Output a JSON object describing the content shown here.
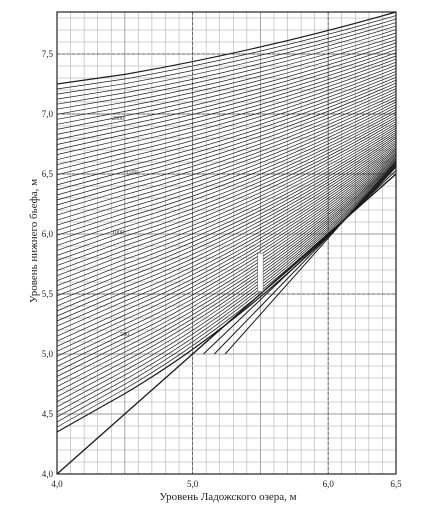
{
  "chart_data": {
    "type": "line",
    "xlabel": "Уровень Ладожского озера, м",
    "ylabel": "Уровень нижнего бьефа, м",
    "xlim": [
      4.0,
      6.5
    ],
    "ylim": [
      4.0,
      7.85
    ],
    "x_ticks": [
      {
        "value": 4.0,
        "label": "4,0"
      },
      {
        "value": 5.0,
        "label": "5,0"
      },
      {
        "value": 6.0,
        "label": "6,0"
      },
      {
        "value": 6.5,
        "label": "6,5"
      }
    ],
    "y_ticks": [
      {
        "value": 4.0,
        "label": "4,0"
      },
      {
        "value": 4.5,
        "label": "4,5"
      },
      {
        "value": 5.0,
        "label": "5,0"
      },
      {
        "value": 5.5,
        "label": "5,5"
      },
      {
        "value": 6.0,
        "label": "6,0"
      },
      {
        "value": 6.5,
        "label": "6,5"
      },
      {
        "value": 7.0,
        "label": "7,0"
      },
      {
        "value": 7.5,
        "label": "7,5"
      }
    ],
    "grid": true,
    "minor_grid_step_x": 0.1,
    "minor_grid_step_y": 0.1,
    "curve_family": {
      "count": 70,
      "x_break": 4.5,
      "bottom_curve": {
        "y_at_xmin": 4.35,
        "y_at_break": 4.67,
        "y_at_xmax": 6.56
      },
      "top_curve": {
        "y_at_xmin": 7.25,
        "y_at_break": 7.33,
        "y_at_xmax": 7.85
      },
      "converge_top_y_at_xmax": 6.7
    },
    "reference_lines": [
      {
        "x": [
          4.0,
          6.5
        ],
        "y": [
          4.0,
          6.5
        ]
      }
    ],
    "fan_lines": {
      "count": 4,
      "y_at_xmax": [
        6.5,
        6.53,
        6.56,
        6.6
      ],
      "x_at_y5": [
        5.0,
        5.08,
        5.16,
        5.24
      ]
    },
    "blank_rect": {
      "x": [
        5.48,
        5.52
      ],
      "y": [
        5.52,
        5.84
      ]
    },
    "curve_labels": [
      {
        "text": "1000",
        "x": 4.45,
        "y": 6.0
      },
      {
        "text": "1500",
        "x": 4.55,
        "y": 6.5
      },
      {
        "text": "2000",
        "x": 4.45,
        "y": 6.95
      },
      {
        "text": "500",
        "x": 4.5,
        "y": 5.15
      }
    ],
    "colors": {
      "curve": "#1a1a1a",
      "grid": "#9a9a9a",
      "background": "#ffffff"
    }
  }
}
